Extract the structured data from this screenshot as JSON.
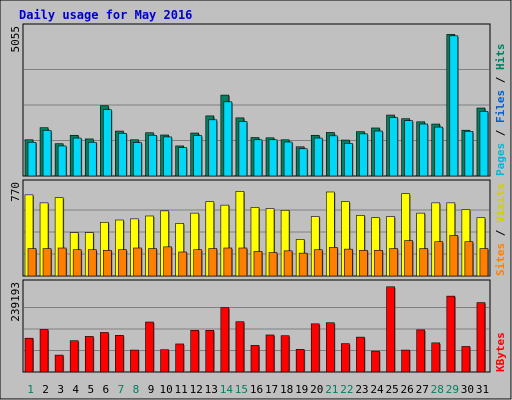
{
  "chart_data": {
    "type": "bar",
    "title": "Daily usage for May 2016",
    "categories": [
      "1",
      "2",
      "3",
      "4",
      "5",
      "6",
      "7",
      "8",
      "9",
      "10",
      "11",
      "12",
      "13",
      "14",
      "15",
      "16",
      "17",
      "18",
      "19",
      "20",
      "21",
      "22",
      "23",
      "24",
      "25",
      "26",
      "27",
      "28",
      "29",
      "30",
      "31"
    ],
    "weekend_days": [
      "1",
      "7",
      "8",
      "14",
      "15",
      "21",
      "22",
      "28",
      "29"
    ],
    "panels": [
      {
        "name": "hits-files-pages",
        "ymax_label": "5055",
        "ymax": 5055,
        "right_label": [
          {
            "text": "Pages",
            "color": "#00b8d8"
          },
          {
            "text": " / ",
            "color": "#000000"
          },
          {
            "text": "Files",
            "color": "#0060d0"
          },
          {
            "text": " / ",
            "color": "#000000"
          },
          {
            "text": "Hits",
            "color": "#008060"
          }
        ],
        "series": [
          {
            "name": "Hits",
            "color": "#008060",
            "values": [
              1290,
              1720,
              1150,
              1450,
              1320,
              2500,
              1600,
              1290,
              1540,
              1460,
              1070,
              1530,
              2140,
              2880,
              2070,
              1370,
              1360,
              1290,
              1040,
              1450,
              1550,
              1280,
              1580,
              1710,
              2170,
              2040,
              1930,
              1850,
              5040,
              1630,
              2420
            ]
          },
          {
            "name": "Files",
            "color": "#00d8f8",
            "values": [
              1200,
              1620,
              1070,
              1350,
              1200,
              2360,
              1520,
              1190,
              1450,
              1390,
              1010,
              1440,
              2000,
              2640,
              1940,
              1290,
              1290,
              1210,
              970,
              1350,
              1430,
              1160,
              1500,
              1600,
              2080,
              1970,
              1850,
              1740,
              4990,
              1590,
              2300
            ]
          }
        ]
      },
      {
        "name": "visits-sites",
        "ymax_label": "770",
        "ymax": 770,
        "right_label": [
          {
            "text": "Sites",
            "color": "#ff8000"
          },
          {
            "text": " / ",
            "color": "#000000"
          },
          {
            "text": "Visits",
            "color": "#d0d000"
          }
        ],
        "series": [
          {
            "name": "Visits",
            "color": "#ffff00",
            "values": [
              710,
              640,
              685,
              380,
              380,
              470,
              490,
              500,
              525,
              570,
              460,
              550,
              650,
              620,
              740,
              600,
              590,
              575,
              320,
              520,
              735,
              650,
              530,
              510,
              520,
              720,
              550,
              640,
              640,
              580,
              510
            ]
          },
          {
            "name": "Sites",
            "color": "#ff8000",
            "values": [
              240,
              240,
              245,
              230,
              230,
              225,
              230,
              245,
              240,
              255,
              210,
              230,
              240,
              245,
              245,
              215,
              205,
              220,
              200,
              230,
              250,
              235,
              225,
              225,
              240,
              310,
              240,
              300,
              355,
              300,
              240
            ]
          }
        ]
      },
      {
        "name": "kbytes",
        "ymax_label": "239193",
        "ymax": 239193,
        "right_label": [
          {
            "text": "KBytes",
            "color": "#ff0000"
          }
        ],
        "series": [
          {
            "name": "KBytes",
            "color": "#ff0000",
            "values": [
              94000,
              118000,
              47000,
              87000,
              99000,
              110000,
              102000,
              61000,
              139000,
              62000,
              78000,
              116000,
              116000,
              179000,
              140000,
              74000,
              103000,
              101000,
              63000,
              134000,
              137000,
              79000,
              97000,
              58000,
              237000,
              61000,
              117000,
              81000,
              211000,
              71000,
              193000
            ]
          }
        ]
      }
    ]
  }
}
